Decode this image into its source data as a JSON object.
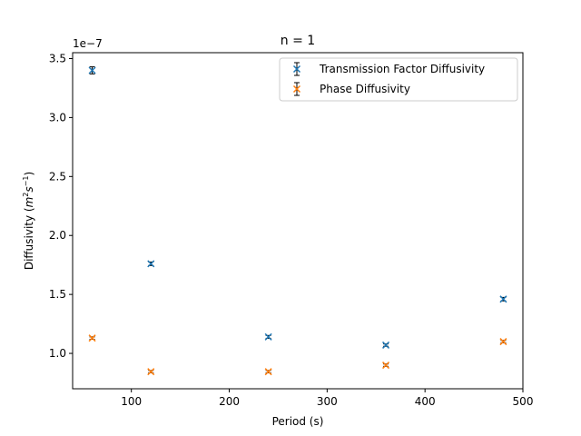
{
  "chart_data": {
    "type": "scatter",
    "title": "n = 1",
    "xlabel": "Period (s)",
    "ylabel_text": "Diffusivity (",
    "ylabel_unit_m": "m",
    "ylabel_unit_exp1": "2",
    "ylabel_unit_s": "s",
    "ylabel_unit_exp2": "−1",
    "ylabel_close": ")",
    "y_offset_label": "1e−7",
    "xlim": [
      40,
      500
    ],
    "ylim": [
      7e-08,
      3.55e-07
    ],
    "x_ticks": [
      100,
      200,
      300,
      400,
      500
    ],
    "y_ticks": [
      1.0,
      1.5,
      2.0,
      2.5,
      3.0,
      3.5
    ],
    "y_tick_scale": 1e-07,
    "grid": false,
    "legend_position": "upper right",
    "series": [
      {
        "name": "Transmission Factor Diffusivity",
        "color": "#1f77b4",
        "marker": "x",
        "x": [
          60,
          120,
          240,
          360,
          480
        ],
        "y": [
          3.4e-07,
          1.76e-07,
          1.14e-07,
          1.07e-07,
          1.46e-07
        ],
        "yerr": [
          3e-09,
          1.5e-09,
          1.2e-09,
          1e-09,
          1.5e-09
        ]
      },
      {
        "name": "Phase Diffusivity",
        "color": "#ff7f0e",
        "marker": "x",
        "x": [
          60,
          120,
          240,
          360,
          480
        ],
        "y": [
          1.13e-07,
          8.45e-08,
          8.45e-08,
          9e-08,
          1.1e-07
        ],
        "yerr": [
          1e-09,
          1e-09,
          1e-09,
          1e-09,
          1e-09
        ]
      }
    ]
  }
}
